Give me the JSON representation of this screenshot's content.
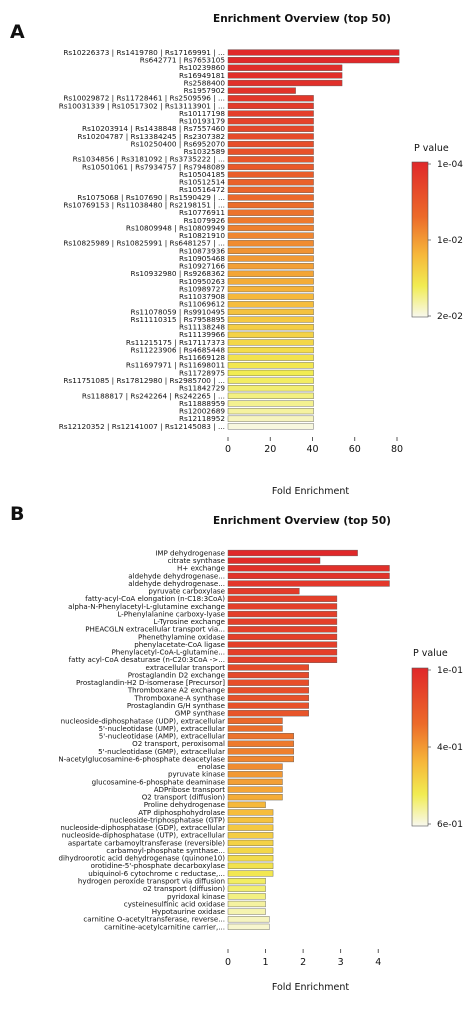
{
  "chart_data": [
    {
      "panel_label": "A",
      "type": "bar",
      "orientation": "horizontal",
      "title": "Enrichment Overview (top 50)",
      "xlabel": "Fold Enrichment",
      "xlim": [
        0,
        80
      ],
      "xticks": [
        0,
        20,
        40,
        60,
        80
      ],
      "legend_title": "P value",
      "legend_ticks": [
        "1e-04",
        "1e-02",
        "2e-02"
      ],
      "categories": [
        "Rs10226373 | Rs1419780 | Rs17169991 | ...",
        "Rs642771 | Rs7653105",
        "Rs10239860",
        "Rs16949181",
        "Rs2588400",
        "Rs1957902",
        "Rs10029872 | Rs11728461 | Rs2509596 | ...",
        "Rs10031339 | Rs10517302 | Rs13113901 | ...",
        "Rs10117198",
        "Rs10193179",
        "Rs10203914 | Rs1438848 | Rs7557460",
        "Rs10204787 | Rs13384245 | Rs2307382",
        "Rs10250400 | Rs6952070",
        "Rs1032589",
        "Rs1034856 | Rs3181092 | Rs3735222 | ...",
        "Rs10501061 | Rs7934757 | Rs7948089",
        "Rs10504185",
        "Rs10512514",
        "Rs10516472",
        "Rs1075068 | Rs107690 | Rs1590429 | ...",
        "Rs10769153 | Rs11038480 | Rs2198151 | ...",
        "Rs10776911",
        "Rs1079926",
        "Rs10809948 | Rs10809949",
        "Rs10821910",
        "Rs10825989 | Rs10825991 | Rs6481257 | ...",
        "Rs10873936",
        "Rs10905468",
        "Rs10927166",
        "Rs10932980 | Rs9268362",
        "Rs10950263",
        "Rs10989727",
        "Rs11037908",
        "Rs11069612",
        "Rs11078059 | Rs9910495",
        "Rs11110315 | Rs7958895",
        "Rs11138248",
        "Rs11139966",
        "Rs11215175 | Rs17117373",
        "Rs11223906 | Rs4685448",
        "Rs11669128",
        "Rs11697971 | Rs11698011",
        "Rs11728975",
        "Rs11751085 | Rs17812980 | Rs2985700 | ...",
        "Rs11842729",
        "Rs1188817 | Rs242264 | Rs242265 | ...",
        "Rs11888959",
        "Rs12002689",
        "Rs12118952",
        "Rs12120352 | Rs12141007 | Rs12145083 | ..."
      ],
      "values": [
        81,
        81,
        54,
        54,
        54,
        32,
        40.5,
        40.5,
        40.5,
        40.5,
        40.5,
        40.5,
        40.5,
        40.5,
        40.5,
        40.5,
        40.5,
        40.5,
        40.5,
        40.5,
        40.5,
        40.5,
        40.5,
        40.5,
        40.5,
        40.5,
        40.5,
        40.5,
        40.5,
        40.5,
        40.5,
        40.5,
        40.5,
        40.5,
        40.5,
        40.5,
        40.5,
        40.5,
        40.5,
        40.5,
        40.5,
        40.5,
        40.5,
        40.5,
        40.5,
        40.5,
        40.5,
        40.5,
        40.5,
        40.5
      ],
      "color_level": [
        0.0,
        0.0,
        0.02,
        0.03,
        0.04,
        0.06,
        0.08,
        0.1,
        0.12,
        0.14,
        0.16,
        0.18,
        0.2,
        0.22,
        0.24,
        0.26,
        0.28,
        0.3,
        0.32,
        0.34,
        0.36,
        0.38,
        0.4,
        0.42,
        0.44,
        0.46,
        0.48,
        0.5,
        0.52,
        0.54,
        0.56,
        0.58,
        0.6,
        0.62,
        0.64,
        0.66,
        0.68,
        0.7,
        0.72,
        0.74,
        0.76,
        0.78,
        0.8,
        0.82,
        0.84,
        0.86,
        0.88,
        0.9,
        0.94,
        0.98
      ]
    },
    {
      "panel_label": "B",
      "type": "bar",
      "orientation": "horizontal",
      "title": "Enrichment Overview (top 50)",
      "xlabel": "Fold Enrichment",
      "xlim": [
        0,
        4.5
      ],
      "xticks": [
        0,
        1,
        2,
        3,
        4
      ],
      "legend_title": "P value",
      "legend_ticks": [
        "1e-01",
        "4e-01",
        "6e-01"
      ],
      "categories": [
        "IMP dehydrogenase",
        "citrate synthase",
        "H+ exchange",
        "aldehyde dehydrogenase...",
        "aldehyde dehydrogenase...",
        "pyruvate carboxylase",
        "fatty-acyl-CoA elongation (n-C18:3CoA)",
        "alpha-N-Phenylacetyl-L-glutamine exchange",
        "L-Phenylalanine carboxy-lyase",
        "L-Tyrosine exchange",
        "PHEACGLN extracellular transport via...",
        "Phenethylamine oxidase",
        "phenylacetate-CoA ligase",
        "Phenylacetyl-CoA-L-glutamine...",
        "fatty acyl-CoA desaturase (n-C20:3CoA ->...",
        "extracellular transport",
        "Prostaglandin D2 exchange",
        "Prostaglandin-H2 D-isomerase [Precursor]",
        "Thromboxane A2 exchange",
        "Thromboxane-A synthase",
        "Prostaglandin G/H synthase",
        "GMP synthase",
        "nucleoside-diphosphatase (UDP), extracellular",
        "5'-nucleotidase (UMP), extracellular",
        "5'-nucleotidase (AMP), extracellular",
        "O2 transport, peroxisomal",
        "5'-nucleotidase (GMP), extracellular",
        "N-acetylglucosamine-6-phosphate deacetylase",
        "enolase",
        "pyruvate kinase",
        "glucosamine-6-phosphate deaminase",
        "ADPribose transport",
        "O2 transport (diffusion)",
        "Proline dehydrogenase",
        "ATP diphosphohydrolase",
        "nucleoside-triphosphatase (GTP)",
        "nucleoside-diphosphatase (GDP), extracellular",
        "nucleoside-diphosphatase (UTP), extracellular",
        "aspartate carbamoyltransferase (reversible)",
        "carbamoyl-phosphate synthase...",
        "dihydroorotic acid dehydrogenase (quinone10)",
        "orotidine-5'-phosphate decarboxylase",
        "ubiquinol-6 cytochrome c reductase,...",
        "hydrogen peroxide transport via diffusion",
        "o2 transport (diffusion)",
        "pyridoxal kinase",
        "cysteinesulfinic acid oxidase",
        "Hypotaurine oxidase",
        "carnitine O-acetyltransferase, reverse...",
        "carnitine-acetylcarnitine carrier,..."
      ],
      "values": [
        3.45,
        2.45,
        4.3,
        4.3,
        4.3,
        1.9,
        2.9,
        2.9,
        2.9,
        2.9,
        2.9,
        2.9,
        2.9,
        2.9,
        2.9,
        2.15,
        2.15,
        2.15,
        2.15,
        2.15,
        2.15,
        2.15,
        1.45,
        1.45,
        1.75,
        1.75,
        1.75,
        1.75,
        1.45,
        1.45,
        1.45,
        1.45,
        1.45,
        1.0,
        1.2,
        1.2,
        1.2,
        1.2,
        1.2,
        1.2,
        1.2,
        1.2,
        1.2,
        1.0,
        1.0,
        1.0,
        1.0,
        1.0,
        1.1,
        1.1
      ],
      "color_level": [
        0.0,
        0.02,
        0.04,
        0.06,
        0.08,
        0.1,
        0.12,
        0.12,
        0.12,
        0.12,
        0.12,
        0.12,
        0.12,
        0.12,
        0.12,
        0.18,
        0.18,
        0.2,
        0.2,
        0.22,
        0.22,
        0.24,
        0.34,
        0.36,
        0.38,
        0.4,
        0.42,
        0.44,
        0.46,
        0.5,
        0.52,
        0.54,
        0.56,
        0.6,
        0.62,
        0.64,
        0.66,
        0.68,
        0.7,
        0.72,
        0.74,
        0.76,
        0.78,
        0.82,
        0.84,
        0.86,
        0.9,
        0.92,
        0.94,
        0.96
      ]
    }
  ],
  "colors": {
    "high": "#e0282a",
    "mid": "#f49b2c",
    "low": "#f7f2c4"
  }
}
